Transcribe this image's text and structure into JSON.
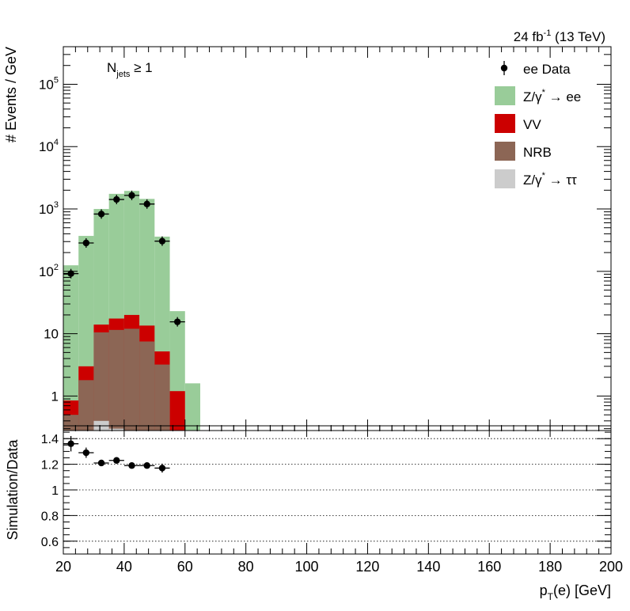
{
  "header": {
    "lumi_main": "24 fb",
    "lumi_exp": "-1",
    "lumi_rest": " (13 TeV)"
  },
  "annotation": {
    "njets_main": "N",
    "njets_sub": "jets",
    "njets_rest": " ≥ 1"
  },
  "legend": {
    "placement": "top-right",
    "entries": [
      {
        "main": "ee Data",
        "sup": "",
        "tail": "",
        "color": "#000000",
        "style": "marker"
      },
      {
        "main": "Z/γ",
        "sup": "*",
        "tail": " → ee",
        "color": "#99cc99",
        "style": "box"
      },
      {
        "main": "VV",
        "sup": "",
        "tail": "",
        "color": "#cc0000",
        "style": "box"
      },
      {
        "main": "NRB",
        "sup": "",
        "tail": "",
        "color": "#8c6655",
        "style": "box"
      },
      {
        "main": "Z/γ",
        "sup": "*",
        "tail": " → ττ",
        "color": "#cccccc",
        "style": "box"
      }
    ]
  },
  "chart_data": [
    {
      "type": "bar",
      "stacked": true,
      "log_y": true,
      "ylabel": "# Events / GeV",
      "xlim": [
        20,
        200
      ],
      "ylim": [
        0.28,
        400000
      ],
      "y_ticks": [
        {
          "value": 1,
          "main": "1",
          "exp": ""
        },
        {
          "value": 10,
          "main": "10",
          "exp": ""
        },
        {
          "value": 100,
          "main": "10",
          "exp": "2"
        },
        {
          "value": 1000,
          "main": "10",
          "exp": "3"
        },
        {
          "value": 10000,
          "main": "10",
          "exp": "4"
        },
        {
          "value": 100000,
          "main": "10",
          "exp": "5"
        }
      ],
      "bin_edges": [
        20,
        25,
        30,
        35,
        40,
        45,
        50,
        55,
        60,
        65
      ],
      "stack_totals": [
        {
          "name": "Z/γ* → ττ",
          "color": "#cccccc",
          "values": [
            0,
            0,
            0.4,
            0.3,
            0,
            0,
            0,
            0,
            0
          ]
        },
        {
          "name": "NRB",
          "color": "#8c6655",
          "values": [
            0.5,
            1.8,
            10.5,
            11.5,
            12,
            7.5,
            3.2,
            0,
            0
          ]
        },
        {
          "name": "VV",
          "color": "#cc0000",
          "values": [
            0.85,
            3.0,
            14.0,
            17.5,
            20.0,
            13.5,
            5.2,
            1.2,
            0
          ]
        },
        {
          "name": "Z/γ* → ee",
          "color": "#99cc99",
          "values": [
            125,
            370,
            1000,
            1750,
            1950,
            1450,
            360,
            23,
            1.6
          ]
        }
      ],
      "data": {
        "name": "ee Data",
        "x": [
          22.5,
          27.5,
          32.5,
          37.5,
          42.5,
          47.5,
          52.5,
          57.5
        ],
        "y": [
          92,
          285,
          830,
          1420,
          1650,
          1200,
          305,
          15.5
        ]
      }
    },
    {
      "type": "scatter",
      "ylabel": "Simulation/Data",
      "xlabel_main": "p",
      "xlabel_sub": "T",
      "xlabel_rest": "(e) [GeV]",
      "xlim": [
        20,
        200
      ],
      "ylim": [
        0.5,
        1.5
      ],
      "x_ticks": [
        "20",
        "40",
        "60",
        "80",
        "100",
        "120",
        "140",
        "160",
        "180",
        "200"
      ],
      "y_ticks": [
        "0.6",
        "0.8",
        "1",
        "1.2",
        "1.4"
      ],
      "grid_lines": [
        0.6,
        0.8,
        1.0,
        1.2,
        1.4
      ],
      "points": {
        "x": [
          22.5,
          27.5,
          32.5,
          37.5,
          42.5,
          47.5,
          52.5
        ],
        "y": [
          1.36,
          1.29,
          1.21,
          1.23,
          1.19,
          1.19,
          1.17
        ],
        "err": [
          0.06,
          0.04,
          0.025,
          0.025,
          0.02,
          0.02,
          0.035
        ]
      }
    }
  ]
}
